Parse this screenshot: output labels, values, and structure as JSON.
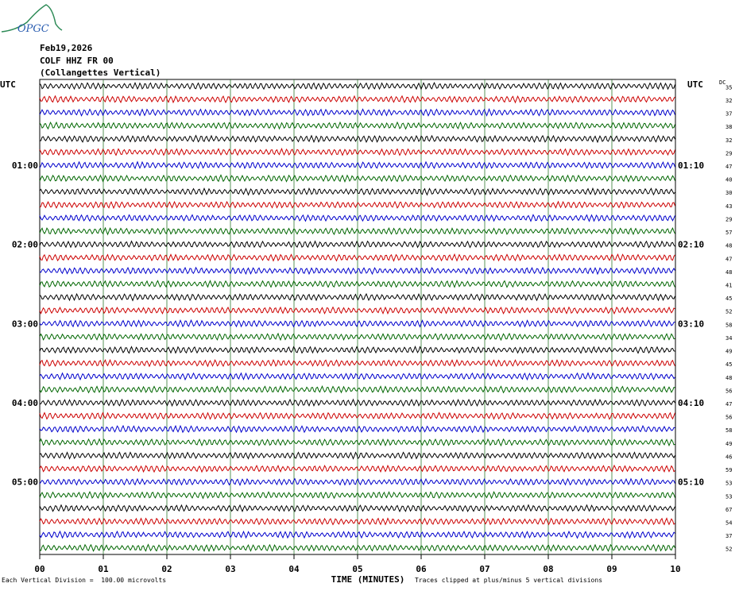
{
  "header": {
    "date": "Feb19,2026",
    "station": "COLF HHZ FR 00",
    "site": "(Collangettes Vertical)",
    "logo_text": "OPGC"
  },
  "left_axis_title": "UTC",
  "right_axis_title": "UTC",
  "dc_label": "DC",
  "hour_labels_left": [
    "01:00",
    "02:00",
    "03:00",
    "04:00",
    "05:00"
  ],
  "hour_labels_right": [
    "01:10",
    "02:10",
    "03:10",
    "04:10",
    "05:10"
  ],
  "dc_values": [
    "35",
    "32",
    "37",
    "38",
    "32",
    "29",
    "47",
    "40",
    "30",
    "43",
    "29",
    "57",
    "48",
    "47",
    "48",
    "41",
    "45",
    "52",
    "58",
    "34",
    "49",
    "45",
    "48",
    "56",
    "47",
    "56",
    "58",
    "49",
    "46",
    "59",
    "53",
    "53",
    "67",
    "54",
    "37",
    "52"
  ],
  "x_tick_labels": [
    "00",
    "01",
    "02",
    "03",
    "04",
    "05",
    "06",
    "07",
    "08",
    "09",
    "10"
  ],
  "xlabel": "TIME (MINUTES)",
  "footer_left": "Each Vertical Division =  100.00 microvolts",
  "footer_right": "Traces clipped at plus/minus 5 vertical divisions",
  "colors": {
    "trace_cycle": [
      "#000000",
      "#cc0000",
      "#0000cc",
      "#006600"
    ],
    "grid": "#2f7a2f"
  },
  "chart_data": {
    "type": "line",
    "title": "COLF HHZ FR 00 (Collangettes Vertical)",
    "xlabel": "TIME (MINUTES)",
    "xlim": [
      0,
      10
    ],
    "traces_per_hour": 6,
    "trace_minutes": 10,
    "trace_count": 36,
    "note_scale": "Each Vertical Division = 100.00 microvolts"
  }
}
